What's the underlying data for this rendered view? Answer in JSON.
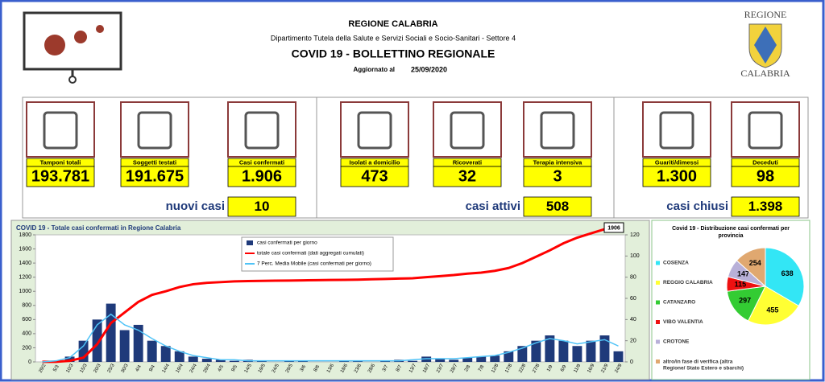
{
  "header": {
    "title": "REGIONE CALABRIA",
    "department": "Dipartimento Tutela della Salute e Servizi Sociali e Socio-Sanitari - Settore 4",
    "bulletin": "COVID 19 - BOLLETTINO REGIONALE",
    "updated_label": "Aggiornato al",
    "updated_date": "25/09/2020",
    "logo_top": "REGIONE",
    "logo_bottom": "CALABRIA"
  },
  "kpis": {
    "groups": [
      {
        "items": [
          {
            "label": "Tamponi totali",
            "value": "193.781"
          },
          {
            "label": "Soggetti testati",
            "value": "191.675"
          },
          {
            "label": "Casi confermati",
            "value": "1.906"
          }
        ],
        "summary": {
          "label": "nuovi casi",
          "value": "10"
        }
      },
      {
        "items": [
          {
            "label": "Isolati a domicilio",
            "value": "473"
          },
          {
            "label": "Ricoverati",
            "value": "32"
          },
          {
            "label": "Terapia intensiva",
            "value": "3"
          }
        ],
        "summary": {
          "label": "casi attivi",
          "value": "508"
        }
      },
      {
        "items": [
          {
            "label": "Guariti/dimessi",
            "value": "1.300"
          },
          {
            "label": "Deceduti",
            "value": "98"
          }
        ],
        "summary": {
          "label": "casi chiusi",
          "value": "1.398"
        }
      }
    ]
  },
  "chart_data": [
    {
      "type": "bar",
      "title": "COVID 19 - Totale casi confermati in Regione Calabria",
      "categories": [
        "29/2",
        "5/3",
        "10/3",
        "15/3",
        "20/3",
        "25/3",
        "30/3",
        "4/4",
        "9/4",
        "14/4",
        "19/4",
        "24/4",
        "29/4",
        "4/5",
        "9/5",
        "14/5",
        "19/5",
        "24/5",
        "29/5",
        "3/6",
        "8/6",
        "13/6",
        "18/6",
        "23/6",
        "28/6",
        "3/7",
        "8/7",
        "13/7",
        "18/7",
        "23/7",
        "28/7",
        "2/8",
        "7/8",
        "12/8",
        "17/8",
        "22/8",
        "27/8",
        "1/9",
        "6/9",
        "11/9",
        "16/9",
        "21/9",
        "24/9"
      ],
      "series": [
        {
          "name": "casi confermati per giorno",
          "type": "bar",
          "axis": "y2",
          "color": "#1f3a7a",
          "values": [
            0,
            1,
            5,
            20,
            40,
            55,
            30,
            35,
            20,
            15,
            10,
            5,
            3,
            2,
            1,
            2,
            1,
            0,
            1,
            1,
            0,
            0,
            1,
            1,
            0,
            1,
            2,
            1,
            5,
            3,
            2,
            4,
            5,
            6,
            10,
            15,
            20,
            25,
            20,
            15,
            20,
            25,
            10
          ]
        },
        {
          "name": "totale casi confermati (dati aggregati cumulati)",
          "type": "line",
          "color": "#ff0000",
          "values": [
            1,
            2,
            15,
            60,
            250,
            550,
            700,
            850,
            950,
            1000,
            1060,
            1100,
            1120,
            1130,
            1140,
            1145,
            1148,
            1150,
            1152,
            1155,
            1158,
            1160,
            1162,
            1165,
            1170,
            1175,
            1180,
            1185,
            1200,
            1215,
            1230,
            1250,
            1265,
            1290,
            1330,
            1400,
            1490,
            1580,
            1680,
            1760,
            1820,
            1880,
            1906
          ]
        },
        {
          "name": "7 Perc. Media Mobile (casi confermati per giorno)",
          "type": "line",
          "axis": "y2",
          "color": "#4fc3f7",
          "values": [
            0,
            1,
            4,
            15,
            35,
            45,
            35,
            30,
            22,
            15,
            10,
            6,
            4,
            2,
            2,
            1,
            1,
            1,
            1,
            1,
            1,
            1,
            1,
            1,
            1,
            1,
            1,
            2,
            3,
            3,
            3,
            4,
            5,
            6,
            9,
            13,
            18,
            22,
            20,
            17,
            19,
            21,
            15
          ]
        }
      ],
      "ylim": [
        0,
        1800
      ],
      "yticks": [
        0,
        200,
        400,
        600,
        800,
        1000,
        1200,
        1400,
        1600,
        1800
      ],
      "y2lim": [
        0,
        120
      ],
      "y2ticks": [
        0,
        20,
        40,
        60,
        80,
        100,
        120
      ],
      "grid": false,
      "legend": "top"
    },
    {
      "type": "pie",
      "title": "Covid 19 - Distribuzione casi confermati per provincia",
      "categories": [
        "COSENZA",
        "REGGIO CALABRIA",
        "CATANZARO",
        "VIBO VALENTIA",
        "CROTONE",
        "altro/in fase di verifica (altra Regione/ Stato Estero e sbarchi)"
      ],
      "values": [
        638,
        455,
        297,
        115,
        147,
        254
      ],
      "colors": [
        "#33e6f5",
        "#ffff33",
        "#33cc33",
        "#ee1111",
        "#b8b0d8",
        "#e0a870"
      ],
      "legend": "left"
    }
  ]
}
